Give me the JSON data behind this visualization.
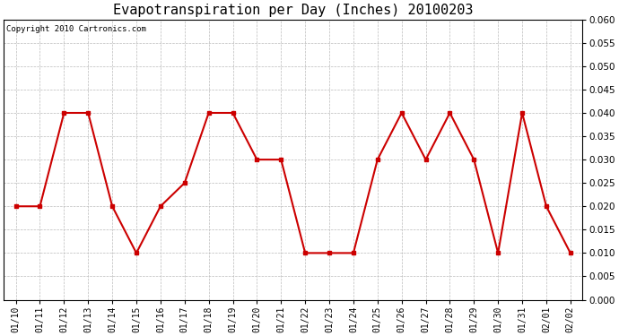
{
  "title": "Evapotranspiration per Day (Inches) 20100203",
  "copyright_text": "Copyright 2010 Cartronics.com",
  "x_labels": [
    "01/10",
    "01/11",
    "01/12",
    "01/13",
    "01/14",
    "01/15",
    "01/16",
    "01/17",
    "01/18",
    "01/19",
    "01/20",
    "01/21",
    "01/22",
    "01/23",
    "01/24",
    "01/25",
    "01/26",
    "01/27",
    "01/28",
    "01/29",
    "01/30",
    "01/31",
    "02/01",
    "02/02"
  ],
  "y_values": [
    0.02,
    0.02,
    0.04,
    0.04,
    0.02,
    0.01,
    0.02,
    0.025,
    0.04,
    0.04,
    0.03,
    0.03,
    0.01,
    0.01,
    0.01,
    0.03,
    0.04,
    0.03,
    0.04,
    0.03,
    0.01,
    0.04,
    0.02,
    0.01
  ],
  "ylim": [
    0.0,
    0.06
  ],
  "ytick_step": 0.005,
  "line_color": "#cc0000",
  "marker": "s",
  "marker_size": 2.5,
  "background_color": "#ffffff",
  "plot_bg_color": "#ffffff",
  "grid_color": "#bbbbbb",
  "title_fontsize": 11,
  "copyright_fontsize": 6.5,
  "tick_fontsize": 7,
  "ytick_fontsize": 7.5
}
